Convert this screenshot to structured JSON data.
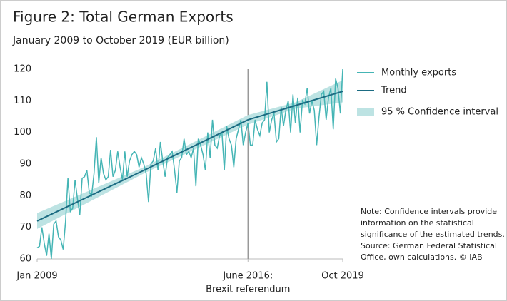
{
  "chart_data": {
    "type": "line",
    "title": "Figure 2: Total German Exports",
    "subtitle": "January 2009 to October 2019 (EUR billion)",
    "x": [
      "2009-01",
      "2009-02",
      "2009-03",
      "2009-04",
      "2009-05",
      "2009-06",
      "2009-07",
      "2009-08",
      "2009-09",
      "2009-10",
      "2009-11",
      "2009-12",
      "2010-01",
      "2010-02",
      "2010-03",
      "2010-04",
      "2010-05",
      "2010-06",
      "2010-07",
      "2010-08",
      "2010-09",
      "2010-10",
      "2010-11",
      "2010-12",
      "2011-01",
      "2011-02",
      "2011-03",
      "2011-04",
      "2011-05",
      "2011-06",
      "2011-07",
      "2011-08",
      "2011-09",
      "2011-10",
      "2011-11",
      "2011-12",
      "2012-01",
      "2012-02",
      "2012-03",
      "2012-04",
      "2012-05",
      "2012-06",
      "2012-07",
      "2012-08",
      "2012-09",
      "2012-10",
      "2012-11",
      "2012-12",
      "2013-01",
      "2013-02",
      "2013-03",
      "2013-04",
      "2013-05",
      "2013-06",
      "2013-07",
      "2013-08",
      "2013-09",
      "2013-10",
      "2013-11",
      "2013-12",
      "2014-01",
      "2014-02",
      "2014-03",
      "2014-04",
      "2014-05",
      "2014-06",
      "2014-07",
      "2014-08",
      "2014-09",
      "2014-10",
      "2014-11",
      "2014-12",
      "2015-01",
      "2015-02",
      "2015-03",
      "2015-04",
      "2015-05",
      "2015-06",
      "2015-07",
      "2015-08",
      "2015-09",
      "2015-10",
      "2015-11",
      "2015-12",
      "2016-01",
      "2016-02",
      "2016-03",
      "2016-04",
      "2016-05",
      "2016-06",
      "2016-07",
      "2016-08",
      "2016-09",
      "2016-10",
      "2016-11",
      "2016-12",
      "2017-01",
      "2017-02",
      "2017-03",
      "2017-04",
      "2017-05",
      "2017-06",
      "2017-07",
      "2017-08",
      "2017-09",
      "2017-10",
      "2017-11",
      "2017-12",
      "2018-01",
      "2018-02",
      "2018-03",
      "2018-04",
      "2018-05",
      "2018-06",
      "2018-07",
      "2018-08",
      "2018-09",
      "2018-10",
      "2018-11",
      "2018-12",
      "2019-01",
      "2019-02",
      "2019-03",
      "2019-04",
      "2019-05",
      "2019-06",
      "2019-07",
      "2019-08",
      "2019-09",
      "2019-10"
    ],
    "series": [
      {
        "name": "Monthly exports",
        "color": "#45b5b5",
        "values": [
          63.5,
          64,
          70,
          65,
          61,
          68,
          60,
          71,
          72,
          67,
          66,
          63,
          72,
          85.5,
          75,
          76,
          85,
          79,
          74,
          85.5,
          86,
          88,
          81,
          80,
          87,
          98.5,
          84,
          92,
          87,
          85,
          86,
          94.5,
          86,
          88,
          94,
          89,
          85,
          94,
          86,
          91,
          93,
          94,
          93,
          89,
          92,
          90,
          87,
          78,
          90,
          91,
          95,
          88,
          97,
          91,
          86,
          92,
          93,
          94,
          88,
          81,
          91,
          92,
          98,
          93,
          94,
          92,
          95,
          83,
          98,
          96,
          93,
          88,
          100,
          92,
          104,
          96,
          95,
          99,
          100,
          88,
          102,
          98,
          96,
          89,
          98,
          101,
          104,
          96,
          100,
          103,
          96,
          96,
          104,
          101,
          99,
          103,
          104,
          116,
          100,
          104,
          106,
          97,
          98,
          108,
          102,
          107,
          110,
          100,
          112,
          103,
          111,
          100,
          110,
          109,
          114,
          106,
          110,
          107,
          96,
          105,
          112,
          113,
          104,
          111,
          114,
          101,
          117,
          114,
          106,
          120
        ]
      },
      {
        "name": "Trend",
        "color": "#1b6b82",
        "x": [
          "2009-01",
          "2012-10",
          "2016-06",
          "2018-02",
          "2019-10"
        ],
        "values": [
          72,
          88,
          104,
          108.5,
          113
        ]
      },
      {
        "name": "95 % Confidence interval",
        "color": "#bde3e3",
        "x": [
          "2009-01",
          "2012-10",
          "2016-06",
          "2018-02",
          "2019-10"
        ],
        "lower": [
          69.5,
          87,
          102.5,
          107.5,
          109.5
        ],
        "upper": [
          74.5,
          89,
          105.5,
          109.5,
          116.5
        ]
      }
    ],
    "xlim": [
      "2009-01",
      "2019-10"
    ],
    "xticks": [
      {
        "value": "2009-01",
        "label": "Jan 2009"
      },
      {
        "value": "2016-06",
        "label": "June 2016:"
      },
      {
        "value": "2019-10",
        "label": "Oct 2019"
      }
    ],
    "vline": {
      "x": "2016-06",
      "label": "Brexit referendum",
      "color": "#999999"
    },
    "ylim": [
      60,
      120
    ],
    "yticks": [
      60,
      70,
      80,
      90,
      100,
      110,
      120
    ],
    "note": [
      "Note: Confidence intervals provide",
      "information on the statistical",
      "significance of the estimated trends.",
      "Source: German Federal Statistical",
      "Office, own calculations. © IAB"
    ]
  }
}
